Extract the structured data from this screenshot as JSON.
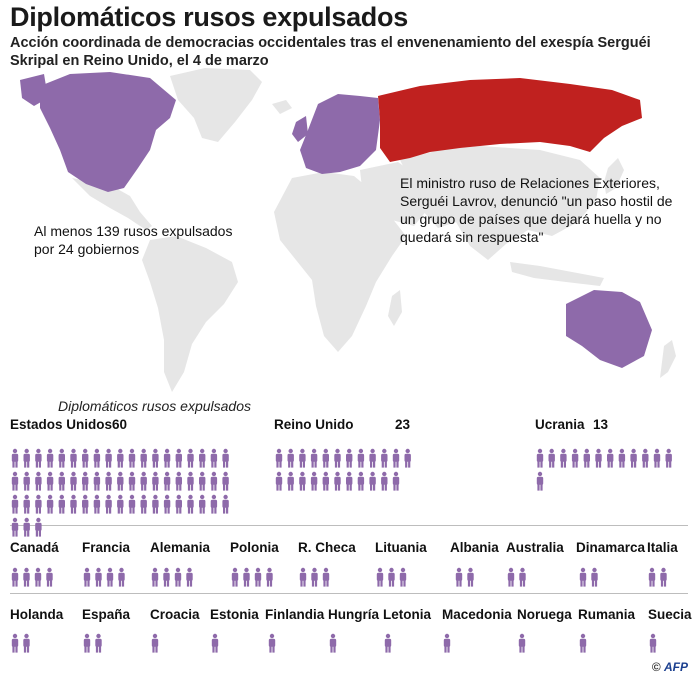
{
  "title": "Diplomáticos rusos expulsados",
  "subtitle": "Acción coordinada de democracias occidentales tras el envenenamiento del exespía Serguéi Skripal en Reino Unido, el 4 de marzo",
  "total_note": "Al menos 139 rusos expulsados por 24 gobiernos",
  "quote_note": "El ministro ruso de Relaciones Exteriores, Serguéi Lavrov, denunció \"un paso hostil de un grupo de países que dejará huella y no quedará sin respuesta\"",
  "colors": {
    "expelled": "#8e6aaa",
    "russia": "#c0211f",
    "other_land": "#e6e6e6",
    "figure": "#8e6aaa"
  },
  "credit": {
    "copyright": "©",
    "agency": "AFP"
  },
  "chart_data": {
    "type": "pictogram",
    "title": "Diplomáticos rusos expulsados",
    "unit": "diplomáticos",
    "countries": [
      {
        "name": "Estados Unidos",
        "value": 60
      },
      {
        "name": "Reino Unido",
        "value": 23
      },
      {
        "name": "Ucrania",
        "value": 13
      },
      {
        "name": "Canadá",
        "value": 4
      },
      {
        "name": "Francia",
        "value": 4
      },
      {
        "name": "Alemania",
        "value": 4
      },
      {
        "name": "Polonia",
        "value": 4
      },
      {
        "name": "R. Checa",
        "value": 3
      },
      {
        "name": "Lituania",
        "value": 3
      },
      {
        "name": "Albania",
        "value": 2
      },
      {
        "name": "Australia",
        "value": 2
      },
      {
        "name": "Dinamarca",
        "value": 2
      },
      {
        "name": "Italia",
        "value": 2
      },
      {
        "name": "Holanda",
        "value": 2
      },
      {
        "name": "España",
        "value": 2
      },
      {
        "name": "Croacia",
        "value": 1
      },
      {
        "name": "Estonia",
        "value": 1
      },
      {
        "name": "Finlandia",
        "value": 1
      },
      {
        "name": "Hungría",
        "value": 1
      },
      {
        "name": "Letonia",
        "value": 1
      },
      {
        "name": "Macedonia",
        "value": 1
      },
      {
        "name": "Noruega",
        "value": 1
      },
      {
        "name": "Rumania",
        "value": 1
      },
      {
        "name": "Suecia",
        "value": 1
      }
    ]
  }
}
